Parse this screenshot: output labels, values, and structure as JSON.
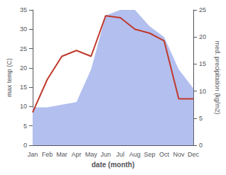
{
  "chart_data": {
    "type": "line",
    "xlabel": "date (month)",
    "ylabel": "max temp (C)",
    "y2label": "med. precipitation (kg/m2)",
    "categories": [
      "Jan",
      "Feb",
      "Mar",
      "Apr",
      "May",
      "Jun",
      "Jul",
      "Aug",
      "Sep",
      "Oct",
      "Nov",
      "Dec"
    ],
    "series": [
      {
        "type": "area",
        "axis": "y2",
        "color": "#b3bfee",
        "values": [
          7.0,
          7.0,
          7.5,
          8.0,
          14.0,
          24.0,
          25.0,
          25.0,
          22.0,
          20.0,
          14.0,
          10.5
        ]
      },
      {
        "type": "line",
        "color": "#c0392b",
        "values": [
          8.5,
          17.0,
          23.0,
          24.5,
          23.0,
          33.5,
          33.0,
          30.0,
          29.0,
          27.0,
          12.0,
          12.0
        ]
      }
    ],
    "ylim": [
      0,
      35
    ],
    "yticks": [
      0,
      5,
      10,
      15,
      20,
      25,
      30,
      35
    ],
    "y2lim": [
      0,
      25
    ],
    "y2ticks": [
      0,
      5,
      10,
      15,
      20,
      25
    ],
    "grid": false
  }
}
